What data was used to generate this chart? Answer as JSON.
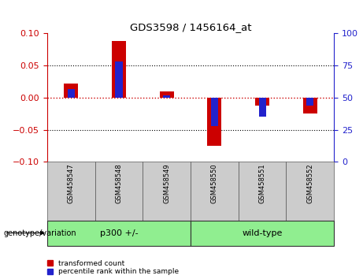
{
  "title": "GDS3598 / 1456164_at",
  "samples": [
    "GSM458547",
    "GSM458548",
    "GSM458549",
    "GSM458550",
    "GSM458551",
    "GSM458552"
  ],
  "transformed_count": [
    0.022,
    0.088,
    0.01,
    -0.075,
    -0.012,
    -0.025
  ],
  "percentile_rank_raw": [
    57,
    78,
    52,
    28,
    35,
    44
  ],
  "ylim_left": [
    -0.1,
    0.1
  ],
  "ylim_right": [
    0,
    100
  ],
  "yticks_left": [
    -0.1,
    -0.05,
    0,
    0.05,
    0.1
  ],
  "yticks_right": [
    0,
    25,
    50,
    75,
    100
  ],
  "bar_color_red": "#CC0000",
  "bar_color_blue": "#2222CC",
  "zero_line_color": "#CC0000",
  "label_color_left": "#CC0000",
  "label_color_right": "#2222CC",
  "group_label": "genotype/variation",
  "legend_red": "transformed count",
  "legend_blue": "percentile rank within the sample",
  "bar_width": 0.3,
  "percentile_bar_width": 0.15,
  "groups": [
    {
      "label": "p300 +/-",
      "start": 0,
      "end": 2,
      "color": "#90EE90"
    },
    {
      "label": "wild-type",
      "start": 3,
      "end": 5,
      "color": "#90EE90"
    }
  ]
}
